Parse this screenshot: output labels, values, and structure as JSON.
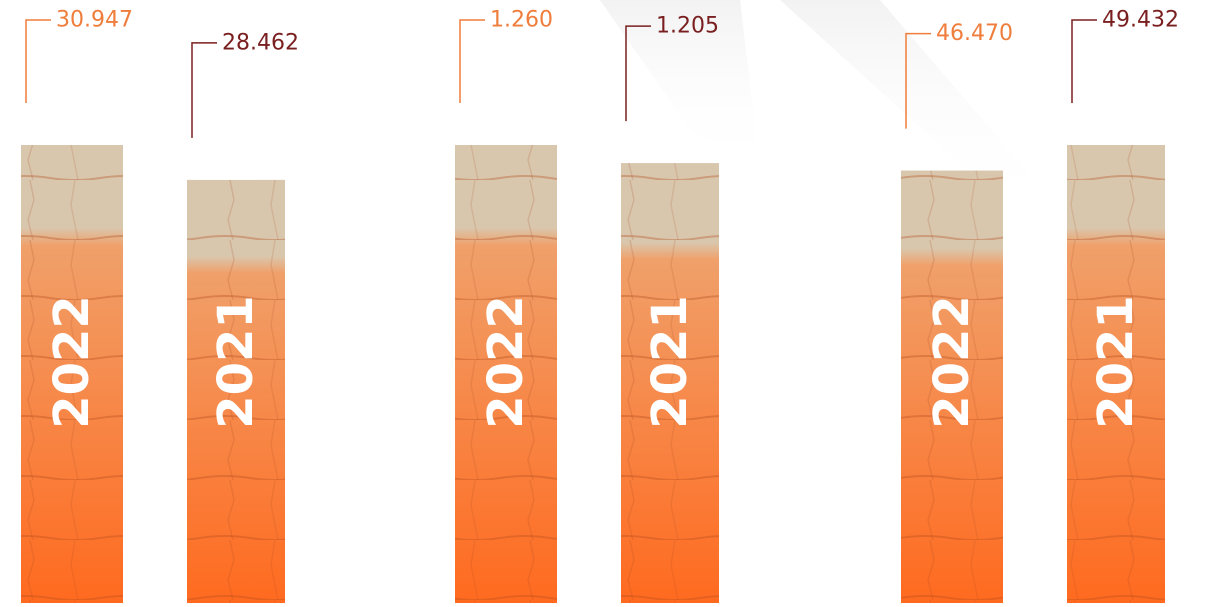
{
  "colors": {
    "label_2022": "#ef7d3c",
    "label_2021": "#7a1f1f",
    "bar_top": "#d9c7ad",
    "bar_mid": "#f0a06a",
    "bar_bottom": "#ff6a1f",
    "year_text": "#ffffff"
  },
  "chart_data": [
    {
      "type": "bar",
      "categories": [
        "2022",
        "2021"
      ],
      "values": [
        30947,
        28462
      ],
      "value_labels": [
        "30.947",
        "28.462"
      ],
      "title": "",
      "xlabel": "",
      "ylabel": ""
    },
    {
      "type": "bar",
      "categories": [
        "2022",
        "2021"
      ],
      "values": [
        1260,
        1205
      ],
      "value_labels": [
        "1.260",
        "1.205"
      ],
      "title": "",
      "xlabel": "",
      "ylabel": ""
    },
    {
      "type": "bar",
      "categories": [
        "2022",
        "2021"
      ],
      "values": [
        46470,
        49432
      ],
      "value_labels": [
        "46.470",
        "49.432"
      ],
      "title": "",
      "xlabel": "",
      "ylabel": ""
    }
  ]
}
